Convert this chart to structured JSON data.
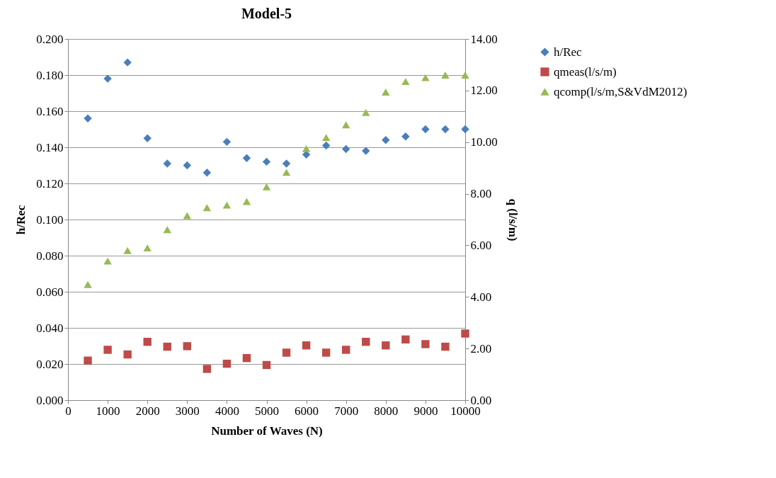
{
  "chart_data": {
    "type": "scatter",
    "title": "Model-5",
    "xlabel": "Number of Waves (N)",
    "ylabel": "h/Rec",
    "y2label": "q (l/s/m)",
    "x": [
      500,
      1000,
      1500,
      2000,
      2500,
      3000,
      3500,
      4000,
      4500,
      5000,
      5500,
      6000,
      6500,
      7000,
      7500,
      8000,
      8500,
      9000,
      9500,
      10000
    ],
    "series": [
      {
        "name": "h/Rec",
        "color": "#4a7ebb",
        "marker": "diamond",
        "values": [
          0.156,
          0.178,
          0.187,
          0.145,
          0.131,
          0.13,
          0.126,
          0.143,
          0.134,
          0.132,
          0.131,
          0.136,
          0.141,
          0.139,
          0.138,
          0.144,
          0.146,
          0.15,
          0.15,
          0.15
        ]
      },
      {
        "name": "qmeas(l/s/m)",
        "color": "#be4b48",
        "marker": "square",
        "axis": "y2",
        "values": [
          1.53,
          1.95,
          1.77,
          2.26,
          2.07,
          2.09,
          1.21,
          1.41,
          1.63,
          1.36,
          1.84,
          2.12,
          1.84,
          1.95,
          2.26,
          2.12,
          2.35,
          2.17,
          2.07,
          2.58
        ]
      },
      {
        "name": "qcomp(l/s/m,S&VdM2012)",
        "color": "#98b954",
        "marker": "triangle",
        "axis": "y2",
        "values": [
          4.48,
          5.39,
          5.8,
          5.9,
          6.61,
          7.15,
          7.46,
          7.56,
          7.7,
          8.27,
          8.83,
          9.75,
          10.18,
          10.67,
          11.15,
          11.94,
          12.35,
          12.5,
          12.6,
          12.6
        ]
      }
    ],
    "xlim": [
      0,
      10000
    ],
    "xticks": [
      0,
      1000,
      2000,
      3000,
      4000,
      5000,
      6000,
      7000,
      8000,
      9000,
      10000
    ],
    "ylim": [
      0,
      0.2
    ],
    "yticks": [
      {
        "value": 0,
        "label": "0.000"
      },
      {
        "value": 0.02,
        "label": "0.020"
      },
      {
        "value": 0.04,
        "label": "0.040"
      },
      {
        "value": 0.06,
        "label": "0.060"
      },
      {
        "value": 0.08,
        "label": "0.080"
      },
      {
        "value": 0.1,
        "label": "0.100"
      },
      {
        "value": 0.12,
        "label": "0.120"
      },
      {
        "value": 0.14,
        "label": "0.140"
      },
      {
        "value": 0.16,
        "label": "0.160"
      },
      {
        "value": 0.18,
        "label": "0.180"
      },
      {
        "value": 0.2,
        "label": "0.200"
      }
    ],
    "y2lim": [
      0,
      14
    ],
    "y2ticks": [
      {
        "value": 0,
        "label": "0.00"
      },
      {
        "value": 2,
        "label": "2.00"
      },
      {
        "value": 4,
        "label": "4.00"
      },
      {
        "value": 6,
        "label": "6.00"
      },
      {
        "value": 8,
        "label": "8.00"
      },
      {
        "value": 10,
        "label": "10.00"
      },
      {
        "value": 12,
        "label": "12.00"
      },
      {
        "value": 14,
        "label": "14.00"
      }
    ],
    "grid": "y",
    "legend": "right"
  }
}
